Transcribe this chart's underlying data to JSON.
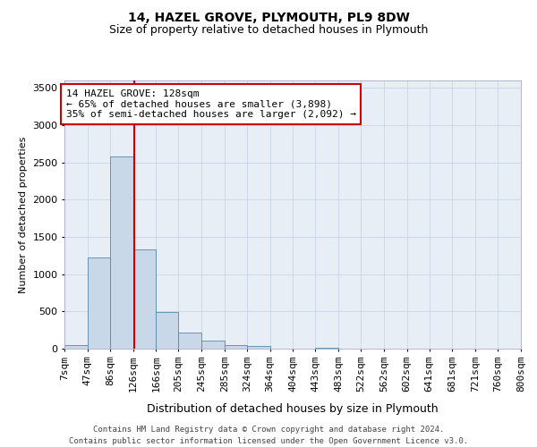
{
  "title": "14, HAZEL GROVE, PLYMOUTH, PL9 8DW",
  "subtitle": "Size of property relative to detached houses in Plymouth",
  "xlabel": "Distribution of detached houses by size in Plymouth",
  "ylabel": "Number of detached properties",
  "bin_labels": [
    "7sqm",
    "47sqm",
    "86sqm",
    "126sqm",
    "166sqm",
    "205sqm",
    "245sqm",
    "285sqm",
    "324sqm",
    "364sqm",
    "404sqm",
    "443sqm",
    "483sqm",
    "522sqm",
    "562sqm",
    "602sqm",
    "641sqm",
    "681sqm",
    "721sqm",
    "760sqm",
    "800sqm"
  ],
  "bin_edges": [
    7,
    47,
    86,
    126,
    166,
    205,
    245,
    285,
    324,
    364,
    404,
    443,
    483,
    522,
    562,
    602,
    641,
    681,
    721,
    760,
    800
  ],
  "bar_values": [
    50,
    1230,
    2580,
    1330,
    490,
    220,
    110,
    50,
    35,
    5,
    5,
    15,
    5,
    0,
    0,
    0,
    0,
    0,
    0,
    0
  ],
  "bar_color": "#c8d8e8",
  "bar_edge_color": "#5588aa",
  "grid_color": "#cdd8e8",
  "bg_color": "#e8eef6",
  "property_size": 128,
  "marker_line_color": "#cc0000",
  "annotation_line1": "14 HAZEL GROVE: 128sqm",
  "annotation_line2": "← 65% of detached houses are smaller (3,898)",
  "annotation_line3": "35% of semi-detached houses are larger (2,092) →",
  "annotation_box_color": "#ffffff",
  "annotation_border_color": "#cc0000",
  "ylim": [
    0,
    3600
  ],
  "yticks": [
    0,
    500,
    1000,
    1500,
    2000,
    2500,
    3000,
    3500
  ],
  "footer_line1": "Contains HM Land Registry data © Crown copyright and database right 2024.",
  "footer_line2": "Contains public sector information licensed under the Open Government Licence v3.0.",
  "title_fontsize": 10,
  "subtitle_fontsize": 9,
  "xlabel_fontsize": 9,
  "ylabel_fontsize": 8,
  "tick_fontsize": 8,
  "annotation_fontsize": 8,
  "footer_fontsize": 6.5
}
